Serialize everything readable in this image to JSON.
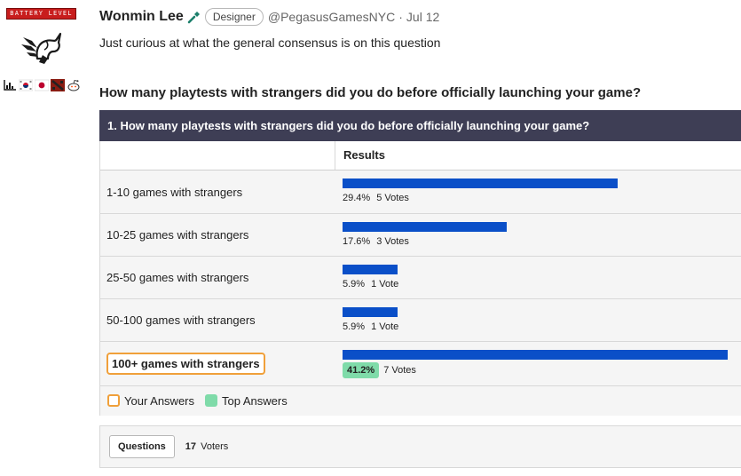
{
  "flair": {
    "battery_text": "BATTERY LEVEL",
    "avatar_icon": "pegasus-unicorn-icon",
    "small_flairs": [
      "chart-icon",
      "korea-flag-icon",
      "japan-flag-icon",
      "dota-icon",
      "reddit-icon"
    ]
  },
  "post": {
    "username": "Wonmin Lee",
    "tool_icon": "wrench-icon",
    "role": "Designer",
    "handle": "@PegasusGamesNYC",
    "separator": "·",
    "date": "Jul 12",
    "body": "Just curious at what the general consensus is on this question",
    "poll_question": "How many playtests with strangers did you do before officially launching your game?"
  },
  "poll": {
    "header": "1. How many playtests with strangers did you do before officially launching your game?",
    "results_label": "Results",
    "bar_color": "#0a4fc8",
    "options": [
      {
        "label": "1-10 games with strangers",
        "percent_text": "29.4%",
        "votes_text": "5 Votes",
        "percent": 29.4,
        "selected": false
      },
      {
        "label": "10-25 games with strangers",
        "percent_text": "17.6%",
        "votes_text": "3 Votes",
        "percent": 17.6,
        "selected": false
      },
      {
        "label": "25-50 games with strangers",
        "percent_text": "5.9%",
        "votes_text": "1 Vote",
        "percent": 5.9,
        "selected": false
      },
      {
        "label": "50-100 games with strangers",
        "percent_text": "5.9%",
        "votes_text": "1 Vote",
        "percent": 5.9,
        "selected": false
      },
      {
        "label": "100+ games with strangers",
        "percent_text": "41.2%",
        "votes_text": "7 Votes",
        "percent": 41.2,
        "selected": true
      }
    ],
    "legend": {
      "your_answers": "Your Answers",
      "your_color": "#f0a03a",
      "top_answers": "Top Answers",
      "top_color": "#7fdba9"
    },
    "footer": {
      "questions_button": "Questions",
      "voters_count": "17",
      "voters_label": "Voters"
    }
  }
}
